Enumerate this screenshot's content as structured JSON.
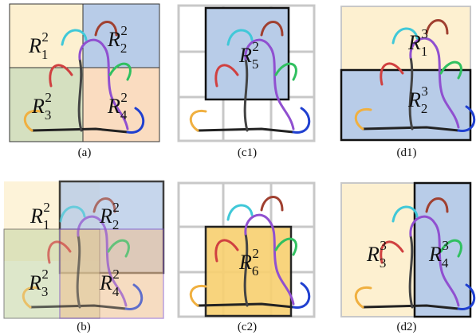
{
  "panels": [
    {
      "caption": "(a)",
      "regions": [
        {
          "base": "R",
          "sub": "1",
          "sup": "2"
        },
        {
          "base": "R",
          "sub": "2",
          "sup": "2"
        },
        {
          "base": "R",
          "sub": "3",
          "sup": "2"
        },
        {
          "base": "R",
          "sub": "4",
          "sup": "2"
        }
      ]
    },
    {
      "caption": "(c1)",
      "regions": [
        {
          "base": "R",
          "sub": "5",
          "sup": "2"
        }
      ]
    },
    {
      "caption": "(d1)",
      "regions": [
        {
          "base": "R",
          "sub": "1",
          "sup": "3"
        },
        {
          "base": "R",
          "sub": "2",
          "sup": "3"
        }
      ]
    },
    {
      "caption": "(b)",
      "regions": [
        {
          "base": "R",
          "sub": "1",
          "sup": "2"
        },
        {
          "base": "R",
          "sub": "2",
          "sup": "2"
        },
        {
          "base": "R",
          "sub": "3",
          "sup": "2"
        },
        {
          "base": "R",
          "sub": "4",
          "sup": "2"
        }
      ]
    },
    {
      "caption": "(c2)",
      "regions": [
        {
          "base": "R",
          "sub": "6",
          "sup": "2"
        }
      ]
    },
    {
      "caption": "(d2)",
      "regions": [
        {
          "base": "R",
          "sub": "3",
          "sup": "3"
        },
        {
          "base": "R",
          "sub": "4",
          "sup": "3"
        }
      ]
    }
  ]
}
